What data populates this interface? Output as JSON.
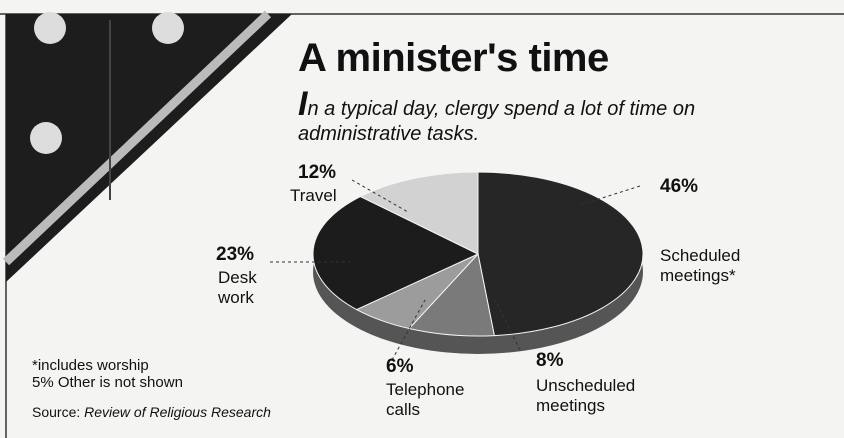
{
  "chart_data": {
    "type": "pie",
    "title": "A minister's time",
    "subtitle": "In a typical day, clergy spend a lot of time on administrative tasks.",
    "categories": [
      "Scheduled meetings*",
      "Unscheduled meetings",
      "Telephone calls",
      "Desk work",
      "Travel"
    ],
    "values": [
      46,
      8,
      6,
      23,
      12
    ],
    "value_labels": [
      "46%",
      "8%",
      "6%",
      "23%",
      "12%"
    ],
    "colors": [
      "#262626",
      "#7a7a7a",
      "#9c9c9c",
      "#1c1c1c",
      "#d2d2d2"
    ],
    "notes": [
      "*includes worship",
      "5% Other is not shown"
    ],
    "source": {
      "label": "Source:",
      "name": "Review of Religious Research"
    }
  }
}
